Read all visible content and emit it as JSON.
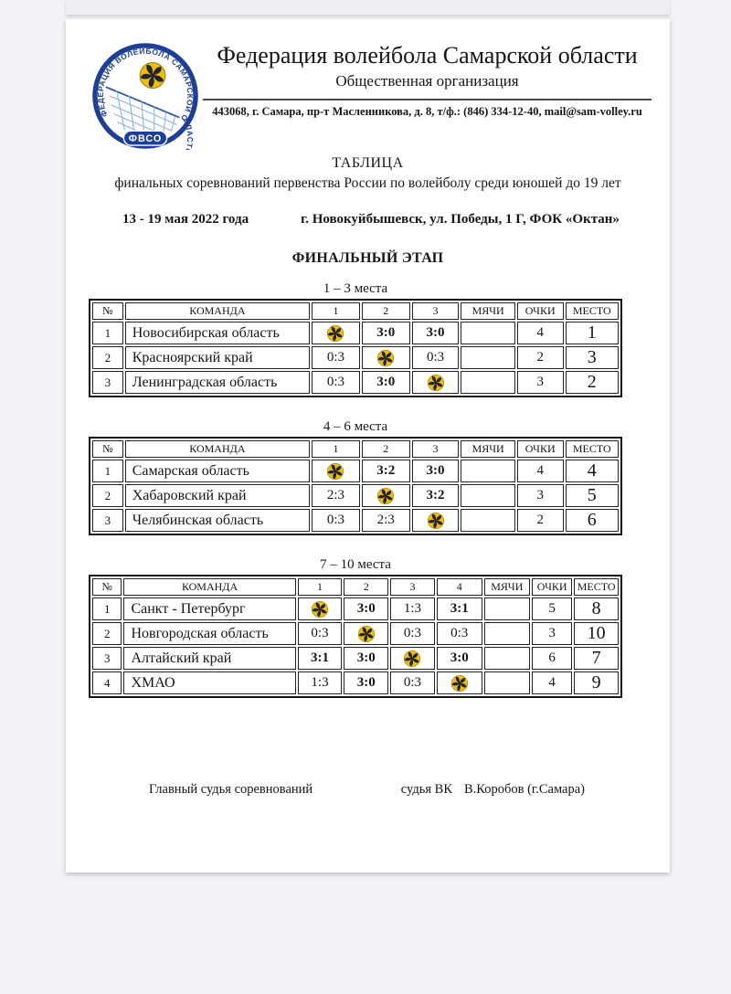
{
  "header": {
    "org_name": "Федерация волейбола Самарской области",
    "org_type": "Общественная организация",
    "address": "443068, г. Самара, пр-т Масленникова, д. 8, т/ф.: (846) 334-12-40, mail@sam-volley.ru",
    "logo": {
      "ring_text": "ФЕДЕРАЦИЯ  ВОЛЕЙБОЛА  САМАРСКОЙ  ОБЛАСТИ",
      "abbr": "ФВСО",
      "icon": "volleyball-net-logo"
    }
  },
  "doc": {
    "title": "ТАБЛИЦА",
    "subtitle": "финальных соревнований первенства России по волейболу среди юношей до 19 лет",
    "dates": "13 - 19 мая 2022 года",
    "venue": "г. Новокуйбышевск, ул. Победы, 1 Г, ФОК «Октан»",
    "stage": "ФИНАЛЬНЫЙ ЭТАП"
  },
  "tables": [
    {
      "caption": "1 – 3 места",
      "columns": [
        "№",
        "КОМАНДА",
        "1",
        "2",
        "3",
        "МЯЧИ",
        "ОЧКИ",
        "МЕСТО"
      ],
      "rows": [
        {
          "num": "1",
          "team": "Новосибирская область",
          "games": [
            "ball",
            "3:0",
            "3:0"
          ],
          "balls": "",
          "points": "4",
          "place": "1"
        },
        {
          "num": "2",
          "team": "Красноярский край",
          "games": [
            "0:3",
            "ball",
            "0:3"
          ],
          "balls": "",
          "points": "2",
          "place": "3"
        },
        {
          "num": "3",
          "team": "Ленинградская область",
          "games": [
            "0:3",
            "3:0",
            "ball"
          ],
          "balls": "",
          "points": "3",
          "place": "2"
        }
      ]
    },
    {
      "caption": "4 – 6 места",
      "columns": [
        "№",
        "КОМАНДА",
        "1",
        "2",
        "3",
        "МЯЧИ",
        "ОЧКИ",
        "МЕСТО"
      ],
      "rows": [
        {
          "num": "1",
          "team": "Самарская область",
          "games": [
            "ball",
            "3:2",
            "3:0"
          ],
          "balls": "",
          "points": "4",
          "place": "4"
        },
        {
          "num": "2",
          "team": "Хабаровский край",
          "games": [
            "2:3",
            "ball",
            "3:2"
          ],
          "balls": "",
          "points": "3",
          "place": "5"
        },
        {
          "num": "3",
          "team": "Челябинская область",
          "games": [
            "0:3",
            "2:3",
            "ball"
          ],
          "balls": "",
          "points": "2",
          "place": "6"
        }
      ]
    },
    {
      "caption": "7 – 10 места",
      "columns": [
        "№",
        "КОМАНДА",
        "1",
        "2",
        "3",
        "4",
        "МЯЧИ",
        "ОЧКИ",
        "МЕСТО"
      ],
      "rows": [
        {
          "num": "1",
          "team": "Санкт - Петербург",
          "games": [
            "ball",
            "3:0",
            "1:3",
            "3:1"
          ],
          "balls": "",
          "points": "5",
          "place": "8"
        },
        {
          "num": "2",
          "team": "Новгородская область",
          "games": [
            "0:3",
            "ball",
            "0:3",
            "0:3"
          ],
          "balls": "",
          "points": "3",
          "place": "10"
        },
        {
          "num": "3",
          "team": "Алтайский край",
          "games": [
            "3:1",
            "3:0",
            "ball",
            "3:0"
          ],
          "balls": "",
          "points": "6",
          "place": "7"
        },
        {
          "num": "4",
          "team": "ХМАО",
          "games": [
            "1:3",
            "3:0",
            "0:3",
            "ball"
          ],
          "balls": "",
          "points": "4",
          "place": "9"
        }
      ]
    }
  ],
  "footer": {
    "left": "Главный судья соревнований",
    "right_label": "судья ВК",
    "right_name": "В.Коробов (г.Самара)"
  },
  "icons": {
    "cell_marker": "volleyball-icon"
  },
  "colors": {
    "accent_blue": "#1f3f97",
    "ball_yellow": "#edbd10",
    "ball_dark": "#23232b",
    "table_border": "#141414",
    "page_bg": "#f2f3f6"
  }
}
